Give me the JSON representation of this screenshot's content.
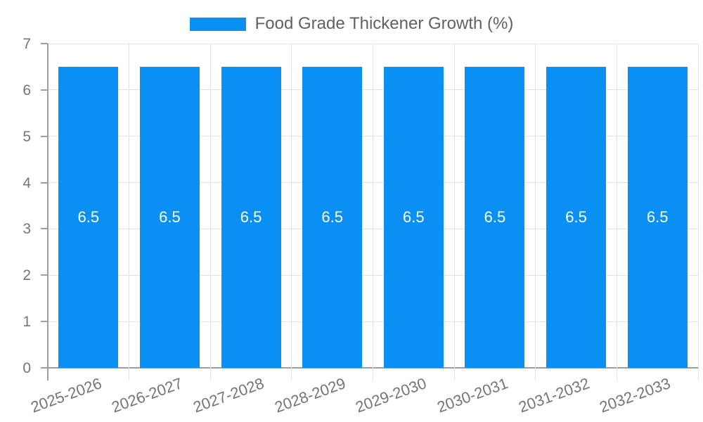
{
  "chart_data": {
    "type": "bar",
    "title": "Food Grade Thickener Growth (%)",
    "categories": [
      "2025-2026",
      "2026-2027",
      "2027-2028",
      "2028-2029",
      "2029-2030",
      "2030-2031",
      "2031-2032",
      "2032-2033"
    ],
    "values": [
      6.5,
      6.5,
      6.5,
      6.5,
      6.5,
      6.5,
      6.5,
      6.5
    ],
    "value_labels": [
      "6.5",
      "6.5",
      "6.5",
      "6.5",
      "6.5",
      "6.5",
      "6.5",
      "6.5"
    ],
    "yticks": [
      "0",
      "1",
      "2",
      "3",
      "4",
      "5",
      "6",
      "7"
    ],
    "ylim": [
      0,
      7
    ],
    "xlabel": "",
    "ylabel": "",
    "grid": true,
    "legend_position": "top",
    "colors": {
      "bar": "#0a8ff3",
      "grid": "#e3e3e3",
      "axis": "#9e9e9e",
      "tick_text": "#757575",
      "legend_text": "#616161",
      "bar_label_text": "#ffffff",
      "background": "#ffffff"
    }
  }
}
